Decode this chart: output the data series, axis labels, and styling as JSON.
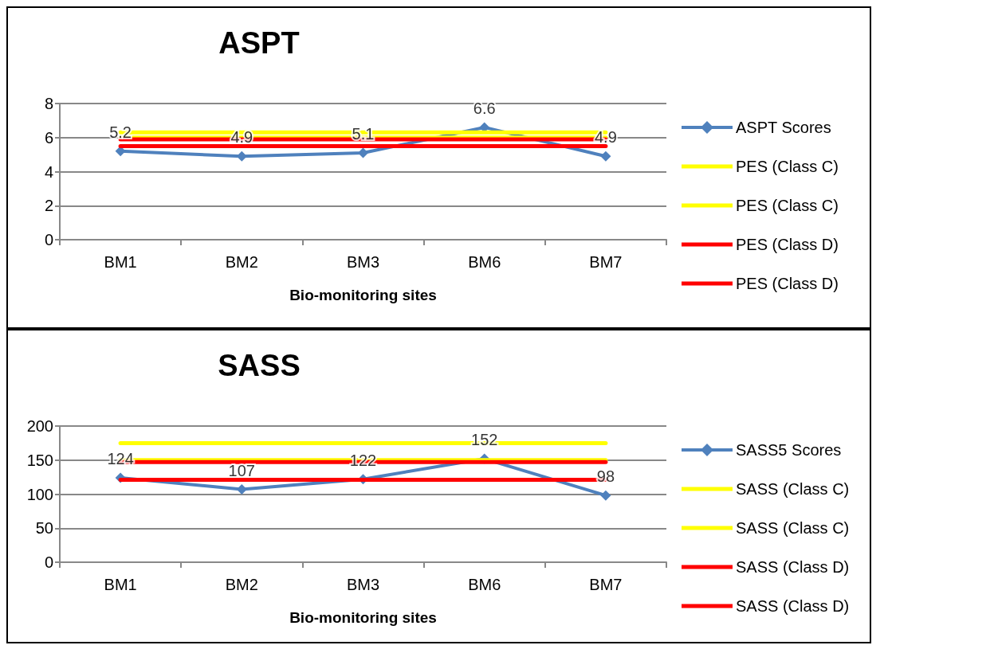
{
  "chart_data": [
    {
      "type": "line",
      "title": "ASPT",
      "xlabel": "Bio-monitoring sites",
      "categories": [
        "BM1",
        "BM2",
        "BM3",
        "BM6",
        "BM7"
      ],
      "ylim": [
        0,
        8
      ],
      "yticks": [
        0,
        2,
        4,
        6,
        8
      ],
      "grid": "y",
      "legend": "right",
      "series": [
        {
          "name": "ASPT Scores",
          "color": "#4f81bd",
          "values": [
            5.2,
            4.9,
            5.1,
            6.6,
            4.9
          ],
          "value_labels": [
            "5.2",
            "4.9",
            "5.1",
            "6.6",
            "4.9"
          ],
          "marker": "diamond"
        },
        {
          "name": "PES (Class C)",
          "color": "#ffff00",
          "values": [
            6.3,
            6.3,
            6.3,
            6.3,
            6.3
          ],
          "marker": "none"
        },
        {
          "name": "PES (Class C)",
          "color": "#ffff00",
          "values": [
            6.0,
            6.0,
            6.0,
            6.0,
            6.0
          ],
          "marker": "none"
        },
        {
          "name": "PES (Class D)",
          "color": "#ff0000",
          "values": [
            5.9,
            5.9,
            5.9,
            5.9,
            5.9
          ],
          "marker": "none"
        },
        {
          "name": "PES (Class D)",
          "color": "#ff0000",
          "values": [
            5.5,
            5.5,
            5.5,
            5.5,
            5.5
          ],
          "marker": "none"
        }
      ]
    },
    {
      "type": "line",
      "title": "SASS",
      "xlabel": "Bio-monitoring sites",
      "categories": [
        "BM1",
        "BM2",
        "BM3",
        "BM6",
        "BM7"
      ],
      "ylim": [
        0,
        200
      ],
      "yticks": [
        0,
        50,
        100,
        150,
        200
      ],
      "grid": "y",
      "legend": "right",
      "series": [
        {
          "name": "SASS5 Scores",
          "color": "#4f81bd",
          "values": [
            124,
            107,
            122,
            152,
            98
          ],
          "value_labels": [
            "124",
            "107",
            "122",
            "152",
            "98"
          ],
          "marker": "diamond"
        },
        {
          "name": "SASS (Class C)",
          "color": "#ffff00",
          "values": [
            175,
            175,
            175,
            175,
            175
          ],
          "marker": "none"
        },
        {
          "name": "SASS (Class C)",
          "color": "#ffff00",
          "values": [
            150,
            150,
            150,
            150,
            150
          ],
          "marker": "none"
        },
        {
          "name": "SASS (Class D)",
          "color": "#ff0000",
          "values": [
            147,
            147,
            147,
            147,
            147
          ],
          "marker": "none"
        },
        {
          "name": "SASS (Class D)",
          "color": "#ff0000",
          "values": [
            121,
            121,
            121,
            121,
            121
          ],
          "marker": "none"
        }
      ]
    }
  ]
}
